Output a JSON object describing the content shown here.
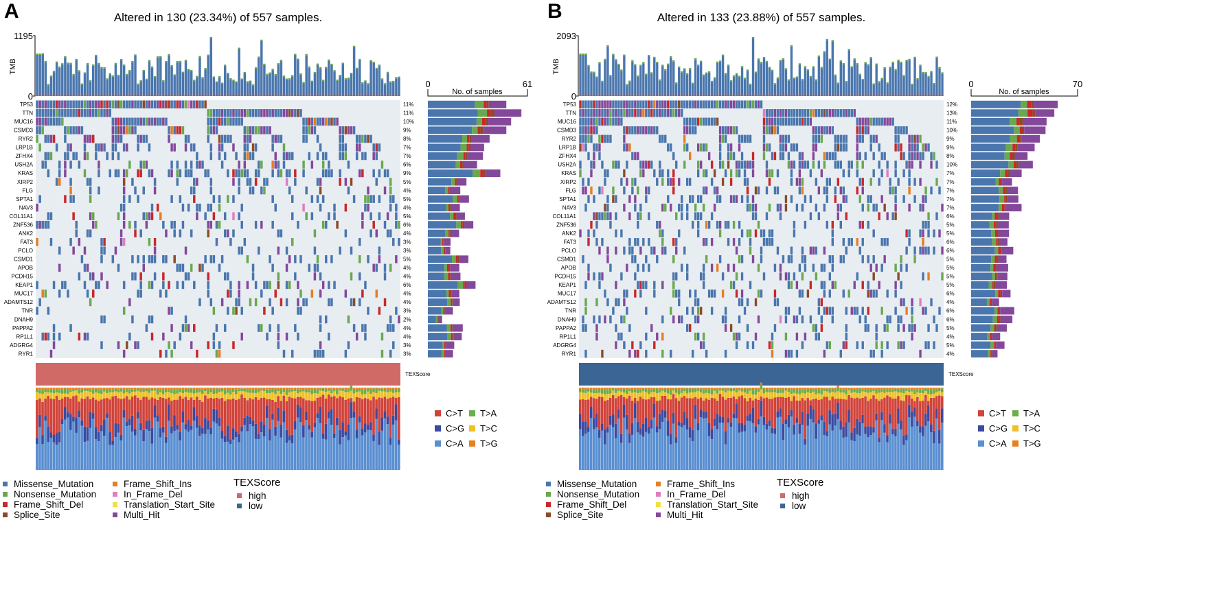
{
  "genes": [
    "TP53",
    "TTN",
    "MUC16",
    "CSMD3",
    "RYR2",
    "LRP1B",
    "ZFHX4",
    "USH2A",
    "KRAS",
    "XIRP2",
    "FLG",
    "SPTA1",
    "NAV3",
    "COL11A1",
    "ZNF536",
    "ANK2",
    "FAT3",
    "PCLO",
    "CSMD1",
    "APOB",
    "PCDH15",
    "KEAP1",
    "MUC17",
    "ADAMTS12",
    "TNR",
    "DNAH9",
    "PAPPA2",
    "RP1L1",
    "ADGRG4",
    "RYR1"
  ],
  "panels": [
    {
      "label": "A",
      "title": "Altered in 130 (23.34%) of 557 samples.",
      "tmb_label": "TMB",
      "tmb_max": "1195",
      "tmb_min": "0",
      "bar_axis_min": "0",
      "bar_axis_max": "61",
      "bar_axis_title": "No. of samples",
      "altered": 130,
      "percents": [
        "11%",
        "11%",
        "10%",
        "9%",
        "8%",
        "7%",
        "7%",
        "6%",
        "9%",
        "5%",
        "4%",
        "5%",
        "4%",
        "5%",
        "6%",
        "4%",
        "3%",
        "3%",
        "5%",
        "4%",
        "4%",
        "6%",
        "4%",
        "4%",
        "3%",
        "2%",
        "4%",
        "4%",
        "3%",
        "3%"
      ],
      "texscore_label": "TEXScore",
      "texscore_value": "high",
      "texscore_color": "#d06a66"
    },
    {
      "label": "B",
      "title": "Altered in 133 (23.88%) of 557 samples.",
      "tmb_label": "TMB",
      "tmb_max": "2093",
      "tmb_min": "0",
      "bar_axis_min": "0",
      "bar_axis_max": "70",
      "bar_axis_title": "No. of samples",
      "altered": 133,
      "percents": [
        "12%",
        "13%",
        "11%",
        "10%",
        "9%",
        "9%",
        "8%",
        "10%",
        "7%",
        "7%",
        "7%",
        "7%",
        "7%",
        "6%",
        "5%",
        "5%",
        "6%",
        "6%",
        "5%",
        "5%",
        "5%",
        "5%",
        "6%",
        "4%",
        "6%",
        "6%",
        "5%",
        "4%",
        "5%",
        "4%"
      ],
      "texscore_label": "TEXScore",
      "texscore_value": "low",
      "texscore_color": "#3a6595"
    }
  ],
  "variant_legend": [
    {
      "label": "Missense_Mutation",
      "color": "#4a76ad"
    },
    {
      "label": "Nonsense_Mutation",
      "color": "#6aa84f"
    },
    {
      "label": "Frame_Shift_Del",
      "color": "#c8282a"
    },
    {
      "label": "Splice_Site",
      "color": "#8b4b2a"
    },
    {
      "label": "Frame_Shift_Ins",
      "color": "#e67e22"
    },
    {
      "label": "In_Frame_Del",
      "color": "#e07fbd"
    },
    {
      "label": "Translation_Start_Site",
      "color": "#f0e040"
    },
    {
      "label": "Multi_Hit",
      "color": "#84489a"
    }
  ],
  "texscore_legend": {
    "title": "TEXScore",
    "items": [
      {
        "label": "high",
        "color": "#d06a66"
      },
      {
        "label": "low",
        "color": "#3a6595"
      }
    ]
  },
  "spectrum_legend": [
    {
      "label": "C>T",
      "color": "#d1433a"
    },
    {
      "label": "T>A",
      "color": "#6aae4a"
    },
    {
      "label": "C>G",
      "color": "#3b4aa0"
    },
    {
      "label": "T>C",
      "color": "#f0c02a"
    },
    {
      "label": "C>A",
      "color": "#5a8fd1"
    },
    {
      "label": "T>G",
      "color": "#e8801e"
    }
  ],
  "chart_data": [
    {
      "type": "bar",
      "title": "Altered in 130 (23.34%) of 557 samples.",
      "xlabel": "No. of samples",
      "xlim": [
        0,
        61
      ],
      "categories": [
        "TP53",
        "TTN",
        "MUC16",
        "CSMD3",
        "RYR2",
        "LRP1B",
        "ZFHX4",
        "USH2A",
        "KRAS",
        "XIRP2",
        "FLG",
        "SPTA1",
        "NAV3",
        "COL11A1",
        "ZNF536",
        "ANK2",
        "FAT3",
        "PCLO",
        "CSMD1",
        "APOB",
        "PCDH15",
        "KEAP1",
        "MUC17",
        "ADAMTS12",
        "TNR",
        "DNAH9",
        "PAPPA2",
        "RP1L1",
        "ADGRG4",
        "RYR1"
      ],
      "values_percent": [
        11,
        11,
        10,
        9,
        8,
        7,
        7,
        6,
        9,
        5,
        4,
        5,
        4,
        5,
        6,
        4,
        3,
        3,
        5,
        4,
        4,
        6,
        4,
        4,
        3,
        2,
        4,
        4,
        3,
        3
      ],
      "tmb_ylim": [
        0,
        1195
      ]
    },
    {
      "type": "bar",
      "title": "Altered in 133 (23.88%) of 557 samples.",
      "xlabel": "No. of samples",
      "xlim": [
        0,
        70
      ],
      "categories": [
        "TP53",
        "TTN",
        "MUC16",
        "CSMD3",
        "RYR2",
        "LRP1B",
        "ZFHX4",
        "USH2A",
        "KRAS",
        "XIRP2",
        "FLG",
        "SPTA1",
        "NAV3",
        "COL11A1",
        "ZNF536",
        "ANK2",
        "FAT3",
        "PCLO",
        "CSMD1",
        "APOB",
        "PCDH15",
        "KEAP1",
        "MUC17",
        "ADAMTS12",
        "TNR",
        "DNAH9",
        "PAPPA2",
        "RP1L1",
        "ADGRG4",
        "RYR1"
      ],
      "values_percent": [
        12,
        13,
        11,
        10,
        9,
        9,
        8,
        10,
        7,
        7,
        7,
        7,
        7,
        6,
        5,
        5,
        6,
        6,
        5,
        5,
        5,
        5,
        6,
        4,
        6,
        6,
        5,
        4,
        5,
        4
      ],
      "tmb_ylim": [
        0,
        2093
      ]
    }
  ]
}
